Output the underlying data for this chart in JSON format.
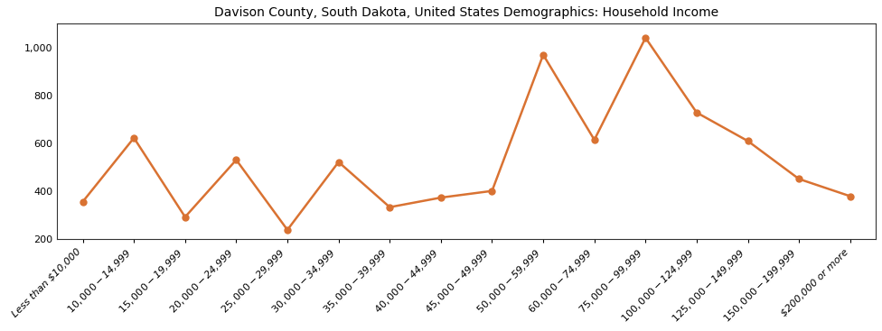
{
  "title": "Davison County, South Dakota, United States Demographics: Household Income",
  "categories": [
    "Less than $10,000",
    "$10,000 - $14,999",
    "$15,000 - $19,999",
    "$20,000 - $24,999",
    "$25,000 - $29,999",
    "$30,000 - $34,999",
    "$35,000 - $39,999",
    "$40,000 - $44,999",
    "$45,000 - $49,999",
    "$50,000 - $59,999",
    "$60,000 - $74,999",
    "$75,000 - $99,999",
    "$100,000 - $124,999",
    "$125,000 - $149,999",
    "$150,000 - $199,999",
    "$200,000 or more"
  ],
  "values": [
    355,
    622,
    291,
    530,
    237,
    521,
    332,
    372,
    400,
    970,
    614,
    1041,
    728,
    609,
    450,
    378
  ],
  "line_color": "#d97232",
  "marker_color": "#d97232",
  "marker_style": "o",
  "marker_size": 5,
  "line_width": 1.8,
  "ylim": [
    200,
    1100
  ],
  "yticks": [
    200,
    400,
    600,
    800,
    1000
  ],
  "background_color": "#ffffff",
  "title_fontsize": 10,
  "tick_fontsize": 8,
  "ylabel_fontsize": 9
}
